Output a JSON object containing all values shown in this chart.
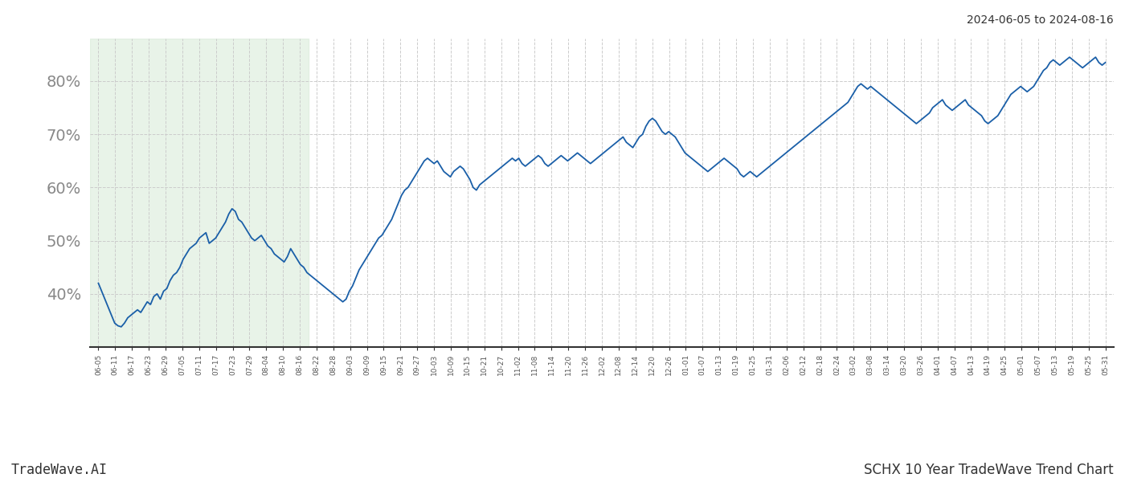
{
  "title_right": "2024-06-05 to 2024-08-16",
  "footer_left": "TradeWave.AI",
  "footer_right": "SCHX 10 Year TradeWave Trend Chart",
  "line_color": "#1a5fa8",
  "line_width": 1.3,
  "shade_color": "#d6ead6",
  "shade_alpha": 0.55,
  "background_color": "#ffffff",
  "grid_color": "#cccccc",
  "grid_linestyle": "--",
  "ylim": [
    30,
    88
  ],
  "yticks": [
    40,
    50,
    60,
    70,
    80
  ],
  "x_labels": [
    "06-05",
    "06-11",
    "06-17",
    "06-23",
    "06-29",
    "07-05",
    "07-11",
    "07-17",
    "07-23",
    "07-29",
    "08-04",
    "08-10",
    "08-16",
    "08-22",
    "08-28",
    "09-03",
    "09-09",
    "09-15",
    "09-21",
    "09-27",
    "10-03",
    "10-09",
    "10-15",
    "10-21",
    "10-27",
    "11-02",
    "11-08",
    "11-14",
    "11-20",
    "11-26",
    "12-02",
    "12-08",
    "12-14",
    "12-20",
    "12-26",
    "01-01",
    "01-07",
    "01-13",
    "01-19",
    "01-25",
    "01-31",
    "02-06",
    "02-12",
    "02-18",
    "02-24",
    "03-02",
    "03-08",
    "03-14",
    "03-20",
    "03-26",
    "04-01",
    "04-07",
    "04-13",
    "04-19",
    "04-25",
    "05-01",
    "05-07",
    "05-13",
    "05-19",
    "05-25",
    "05-31"
  ],
  "shade_label_start": "06-05",
  "shade_label_end": "08-16",
  "y_values": [
    42.0,
    40.5,
    39.0,
    37.5,
    36.0,
    34.5,
    34.0,
    33.8,
    34.5,
    35.5,
    36.0,
    36.5,
    37.0,
    36.5,
    37.5,
    38.5,
    38.0,
    39.5,
    40.0,
    39.0,
    40.5,
    41.0,
    42.5,
    43.5,
    44.0,
    45.0,
    46.5,
    47.5,
    48.5,
    49.0,
    49.5,
    50.5,
    51.0,
    51.5,
    49.5,
    50.0,
    50.5,
    51.5,
    52.5,
    53.5,
    55.0,
    56.0,
    55.5,
    54.0,
    53.5,
    52.5,
    51.5,
    50.5,
    50.0,
    50.5,
    51.0,
    50.0,
    49.0,
    48.5,
    47.5,
    47.0,
    46.5,
    46.0,
    47.0,
    48.5,
    47.5,
    46.5,
    45.5,
    45.0,
    44.0,
    43.5,
    43.0,
    42.5,
    42.0,
    41.5,
    41.0,
    40.5,
    40.0,
    39.5,
    39.0,
    38.5,
    39.0,
    40.5,
    41.5,
    43.0,
    44.5,
    45.5,
    46.5,
    47.5,
    48.5,
    49.5,
    50.5,
    51.0,
    52.0,
    53.0,
    54.0,
    55.5,
    57.0,
    58.5,
    59.5,
    60.0,
    61.0,
    62.0,
    63.0,
    64.0,
    65.0,
    65.5,
    65.0,
    64.5,
    65.0,
    64.0,
    63.0,
    62.5,
    62.0,
    63.0,
    63.5,
    64.0,
    63.5,
    62.5,
    61.5,
    60.0,
    59.5,
    60.5,
    61.0,
    61.5,
    62.0,
    62.5,
    63.0,
    63.5,
    64.0,
    64.5,
    65.0,
    65.5,
    65.0,
    65.5,
    64.5,
    64.0,
    64.5,
    65.0,
    65.5,
    66.0,
    65.5,
    64.5,
    64.0,
    64.5,
    65.0,
    65.5,
    66.0,
    65.5,
    65.0,
    65.5,
    66.0,
    66.5,
    66.0,
    65.5,
    65.0,
    64.5,
    65.0,
    65.5,
    66.0,
    66.5,
    67.0,
    67.5,
    68.0,
    68.5,
    69.0,
    69.5,
    68.5,
    68.0,
    67.5,
    68.5,
    69.5,
    70.0,
    71.5,
    72.5,
    73.0,
    72.5,
    71.5,
    70.5,
    70.0,
    70.5,
    70.0,
    69.5,
    68.5,
    67.5,
    66.5,
    66.0,
    65.5,
    65.0,
    64.5,
    64.0,
    63.5,
    63.0,
    63.5,
    64.0,
    64.5,
    65.0,
    65.5,
    65.0,
    64.5,
    64.0,
    63.5,
    62.5,
    62.0,
    62.5,
    63.0,
    62.5,
    62.0,
    62.5,
    63.0,
    63.5,
    64.0,
    64.5,
    65.0,
    65.5,
    66.0,
    66.5,
    67.0,
    67.5,
    68.0,
    68.5,
    69.0,
    69.5,
    70.0,
    70.5,
    71.0,
    71.5,
    72.0,
    72.5,
    73.0,
    73.5,
    74.0,
    74.5,
    75.0,
    75.5,
    76.0,
    77.0,
    78.0,
    79.0,
    79.5,
    79.0,
    78.5,
    79.0,
    78.5,
    78.0,
    77.5,
    77.0,
    76.5,
    76.0,
    75.5,
    75.0,
    74.5,
    74.0,
    73.5,
    73.0,
    72.5,
    72.0,
    72.5,
    73.0,
    73.5,
    74.0,
    75.0,
    75.5,
    76.0,
    76.5,
    75.5,
    75.0,
    74.5,
    75.0,
    75.5,
    76.0,
    76.5,
    75.5,
    75.0,
    74.5,
    74.0,
    73.5,
    72.5,
    72.0,
    72.5,
    73.0,
    73.5,
    74.5,
    75.5,
    76.5,
    77.5,
    78.0,
    78.5,
    79.0,
    78.5,
    78.0,
    78.5,
    79.0,
    80.0,
    81.0,
    82.0,
    82.5,
    83.5,
    84.0,
    83.5,
    83.0,
    83.5,
    84.0,
    84.5,
    84.0,
    83.5,
    83.0,
    82.5,
    83.0,
    83.5,
    84.0,
    84.5,
    83.5,
    83.0,
    83.5
  ]
}
